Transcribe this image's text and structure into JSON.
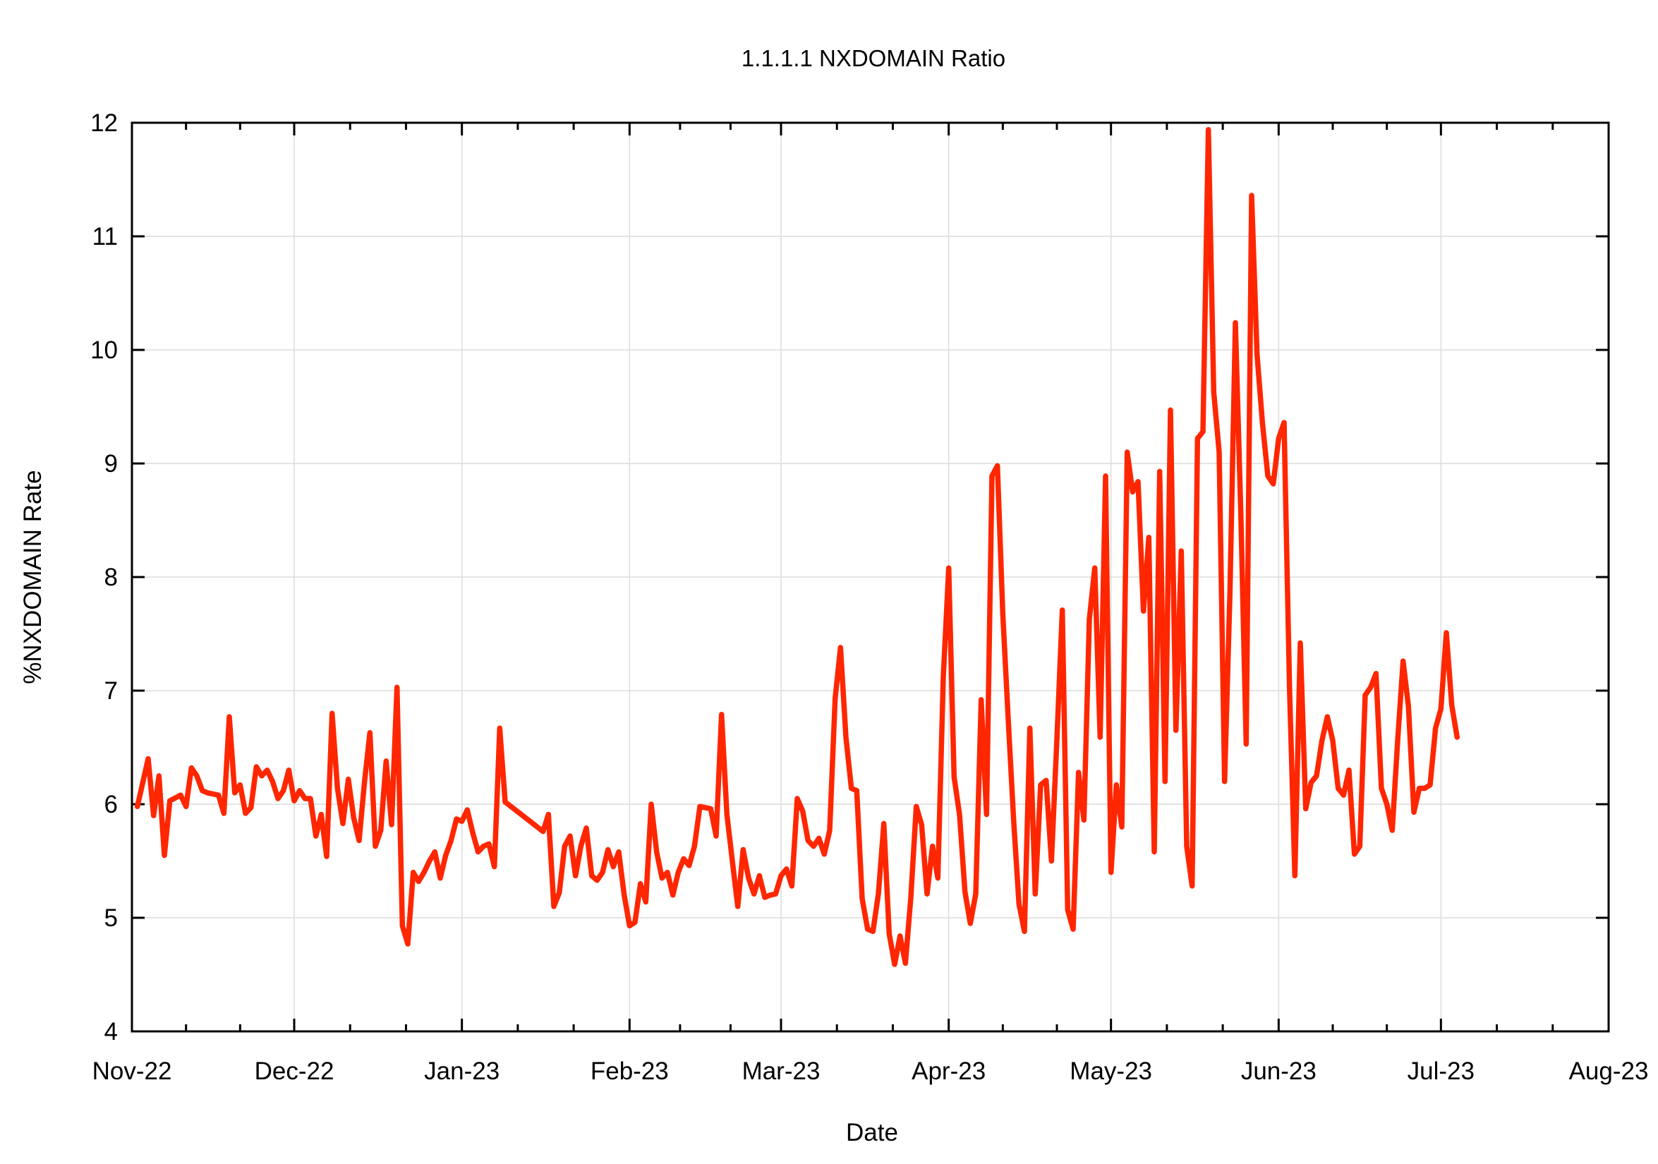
{
  "chart_data": {
    "type": "line",
    "title": "1.1.1.1 NXDOMAIN Ratio",
    "xlabel": "Date",
    "ylabel": "%NXDOMAIN Rate",
    "xlim": [
      "2022-11-01",
      "2023-08-01"
    ],
    "ylim": [
      4,
      12
    ],
    "x_tick_labels": [
      "Nov-22",
      "Dec-22",
      "Jan-23",
      "Feb-23",
      "Mar-23",
      "Apr-23",
      "May-23",
      "Jun-23",
      "Jul-23",
      "Aug-23"
    ],
    "x_ticks": [
      "2022-11-01",
      "2022-12-01",
      "2023-01-01",
      "2023-02-01",
      "2023-03-01",
      "2023-04-01",
      "2023-05-01",
      "2023-06-01",
      "2023-07-01",
      "2023-08-01"
    ],
    "y_ticks": [
      4,
      5,
      6,
      7,
      8,
      9,
      10,
      11,
      12
    ],
    "grid": true,
    "line_color": "#ff2600",
    "series": [
      {
        "x": [
          "2022-11-02",
          "2022-11-04",
          "2022-11-05",
          "2022-11-06",
          "2022-11-07",
          "2022-11-08",
          "2022-11-10",
          "2022-11-11",
          "2022-11-12",
          "2022-11-13",
          "2022-11-14",
          "2022-11-15",
          "2022-11-17",
          "2022-11-18",
          "2022-11-19",
          "2022-11-20",
          "2022-11-21",
          "2022-11-22",
          "2022-11-23",
          "2022-11-24",
          "2022-11-25",
          "2022-11-26",
          "2022-11-27",
          "2022-11-28",
          "2022-11-29",
          "2022-11-30",
          "2022-12-01",
          "2022-12-02",
          "2022-12-03",
          "2022-12-04",
          "2022-12-05",
          "2022-12-06",
          "2022-12-07",
          "2022-12-08",
          "2022-12-09",
          "2022-12-10",
          "2022-12-11",
          "2022-12-12",
          "2022-12-13",
          "2022-12-14",
          "2022-12-15",
          "2022-12-16",
          "2022-12-17",
          "2022-12-18",
          "2022-12-19",
          "2022-12-20",
          "2022-12-21",
          "2022-12-22",
          "2022-12-23",
          "2022-12-24",
          "2022-12-25",
          "2022-12-26",
          "2022-12-27",
          "2022-12-28",
          "2022-12-29",
          "2022-12-30",
          "2022-12-31",
          "2023-01-01",
          "2023-01-02",
          "2023-01-03",
          "2023-01-04",
          "2023-01-05",
          "2023-01-06",
          "2023-01-07",
          "2023-01-08",
          "2023-01-09",
          "2023-01-16",
          "2023-01-17",
          "2023-01-18",
          "2023-01-19",
          "2023-01-20",
          "2023-01-21",
          "2023-01-22",
          "2023-01-23",
          "2023-01-24",
          "2023-01-25",
          "2023-01-26",
          "2023-01-27",
          "2023-01-28",
          "2023-01-29",
          "2023-01-30",
          "2023-01-31",
          "2023-02-01",
          "2023-02-02",
          "2023-02-03",
          "2023-02-04",
          "2023-02-05",
          "2023-02-06",
          "2023-02-07",
          "2023-02-08",
          "2023-02-09",
          "2023-02-10",
          "2023-02-11",
          "2023-02-12",
          "2023-02-13",
          "2023-02-14",
          "2023-02-15",
          "2023-02-16",
          "2023-02-17",
          "2023-02-18",
          "2023-02-19",
          "2023-02-20",
          "2023-02-21",
          "2023-02-22",
          "2023-02-23",
          "2023-02-24",
          "2023-02-25",
          "2023-02-26",
          "2023-02-27",
          "2023-02-28",
          "2023-03-01",
          "2023-03-02",
          "2023-03-03",
          "2023-03-04",
          "2023-03-05",
          "2023-03-06",
          "2023-03-07",
          "2023-03-08",
          "2023-03-09",
          "2023-03-10",
          "2023-03-11",
          "2023-03-12",
          "2023-03-13",
          "2023-03-14",
          "2023-03-15",
          "2023-03-16",
          "2023-03-17",
          "2023-03-18",
          "2023-03-19",
          "2023-03-20",
          "2023-03-21",
          "2023-03-22",
          "2023-03-23",
          "2023-03-24",
          "2023-03-25",
          "2023-03-26",
          "2023-03-27",
          "2023-03-28",
          "2023-03-29",
          "2023-03-30",
          "2023-03-31",
          "2023-04-01",
          "2023-04-02",
          "2023-04-03",
          "2023-04-04",
          "2023-04-05",
          "2023-04-06",
          "2023-04-07",
          "2023-04-08",
          "2023-04-09",
          "2023-04-10",
          "2023-04-11",
          "2023-04-12",
          "2023-04-13",
          "2023-04-14",
          "2023-04-15",
          "2023-04-16",
          "2023-04-17",
          "2023-04-18",
          "2023-04-19",
          "2023-04-20",
          "2023-04-21",
          "2023-04-22",
          "2023-04-23",
          "2023-04-24",
          "2023-04-25",
          "2023-04-26",
          "2023-04-27",
          "2023-04-28",
          "2023-04-29",
          "2023-04-30",
          "2023-05-01",
          "2023-05-02",
          "2023-05-03",
          "2023-05-04",
          "2023-05-05",
          "2023-05-06",
          "2023-05-07",
          "2023-05-08",
          "2023-05-09",
          "2023-05-10",
          "2023-05-11",
          "2023-05-12",
          "2023-05-13",
          "2023-05-14",
          "2023-05-15",
          "2023-05-16",
          "2023-05-17",
          "2023-05-18",
          "2023-05-19",
          "2023-05-20",
          "2023-05-21",
          "2023-05-22",
          "2023-05-23",
          "2023-05-24",
          "2023-05-25",
          "2023-05-26",
          "2023-05-27",
          "2023-05-28",
          "2023-05-29",
          "2023-05-30",
          "2023-05-31",
          "2023-06-01",
          "2023-06-02",
          "2023-06-03",
          "2023-06-04",
          "2023-06-05",
          "2023-06-06",
          "2023-06-07",
          "2023-06-08",
          "2023-06-09",
          "2023-06-10",
          "2023-06-11",
          "2023-06-12",
          "2023-06-13",
          "2023-06-14",
          "2023-06-15",
          "2023-06-16",
          "2023-06-17",
          "2023-06-18",
          "2023-06-19",
          "2023-06-20",
          "2023-06-21",
          "2023-06-22",
          "2023-06-23",
          "2023-06-24",
          "2023-06-25",
          "2023-06-26",
          "2023-06-27",
          "2023-06-28",
          "2023-06-29",
          "2023-06-30",
          "2023-07-01",
          "2023-07-02",
          "2023-07-03",
          "2023-07-04"
        ],
        "y": [
          5.98,
          6.4,
          5.9,
          6.25,
          5.55,
          6.03,
          6.08,
          5.98,
          6.32,
          6.25,
          6.12,
          6.1,
          6.08,
          5.92,
          6.77,
          6.1,
          6.17,
          5.92,
          5.97,
          6.33,
          6.25,
          6.3,
          6.2,
          6.05,
          6.12,
          6.3,
          6.03,
          6.12,
          6.05,
          6.05,
          5.72,
          5.91,
          5.54,
          6.8,
          6.14,
          5.83,
          6.22,
          5.88,
          5.68,
          6.2,
          6.63,
          5.63,
          5.77,
          6.38,
          5.82,
          7.03,
          4.93,
          4.77,
          5.4,
          5.32,
          5.4,
          5.5,
          5.58,
          5.35,
          5.55,
          5.68,
          5.87,
          5.85,
          5.95,
          5.75,
          5.58,
          5.63,
          5.65,
          5.45,
          6.67,
          6.02,
          5.76,
          5.91,
          5.1,
          5.22,
          5.63,
          5.72,
          5.37,
          5.63,
          5.79,
          5.37,
          5.33,
          5.4,
          5.6,
          5.45,
          5.58,
          5.2,
          4.93,
          4.96,
          5.3,
          5.14,
          6.0,
          5.58,
          5.35,
          5.4,
          5.2,
          5.4,
          5.52,
          5.46,
          5.63,
          5.98,
          5.97,
          5.96,
          5.72,
          6.79,
          5.91,
          5.5,
          5.1,
          5.6,
          5.35,
          5.21,
          5.37,
          5.18,
          5.2,
          5.21,
          5.37,
          5.43,
          5.28,
          6.05,
          5.94,
          5.68,
          5.63,
          5.7,
          5.56,
          5.77,
          6.93,
          7.38,
          6.59,
          6.14,
          6.12,
          5.17,
          4.9,
          4.88,
          5.21,
          5.83,
          4.86,
          4.59,
          4.84,
          4.6,
          5.18,
          5.98,
          5.82,
          5.21,
          5.63,
          5.35,
          7.12,
          8.08,
          6.24,
          5.91,
          5.23,
          4.95,
          5.21,
          6.92,
          5.91,
          8.89,
          8.98,
          7.68,
          6.75,
          5.86,
          5.12,
          4.88,
          6.67,
          5.21,
          6.17,
          6.21,
          5.5,
          6.57,
          7.71,
          5.07,
          4.9,
          6.28,
          5.86,
          7.63,
          8.08,
          6.59,
          8.89,
          5.4,
          6.17,
          5.8,
          9.1,
          8.75,
          8.84,
          7.7,
          8.35,
          5.58,
          8.93,
          6.2,
          9.47,
          6.65,
          8.23,
          5.63,
          5.28,
          9.22,
          9.28,
          11.94,
          9.63,
          9.1,
          6.2,
          7.86,
          10.24,
          8.56,
          6.53,
          11.36,
          9.96,
          9.36,
          8.89,
          8.82,
          9.22,
          9.36,
          7.03,
          5.37,
          7.42,
          5.96,
          6.19,
          6.25,
          6.56,
          6.77,
          6.56,
          6.14,
          6.08,
          6.3,
          5.56,
          5.63,
          6.96,
          7.03,
          7.15,
          6.14,
          6.0,
          5.77,
          6.56,
          7.26,
          6.86,
          5.93,
          6.14,
          6.14,
          6.17,
          6.67,
          6.84,
          7.51,
          6.87,
          6.59
        ]
      }
    ]
  }
}
